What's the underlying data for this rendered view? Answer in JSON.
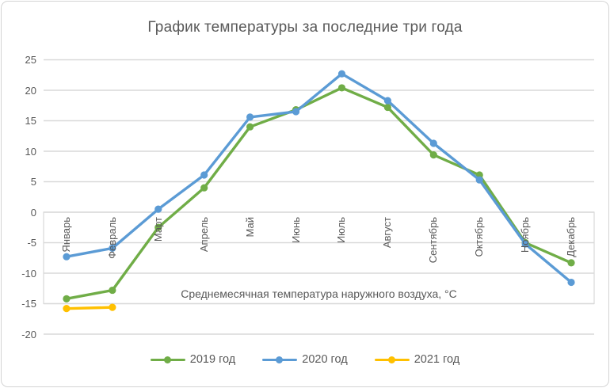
{
  "chart_data": {
    "type": "line",
    "title": "График температуры за последние три года",
    "axis_note": "Среднемесячная температура наружного воздуха, °С",
    "categories": [
      "Январь",
      "Февраль",
      "Март",
      "Апрель",
      "Май",
      "Июнь",
      "Июль",
      "Август",
      "Сентябрь",
      "Октябрь",
      "Ноябрь",
      "Декабрь"
    ],
    "y_ticks": [
      25,
      20,
      15,
      10,
      5,
      0,
      -5,
      -10,
      -15,
      -20
    ],
    "ylim": [
      -20,
      25
    ],
    "grid": true,
    "legend_position": "bottom",
    "series": [
      {
        "name": "2019 год",
        "color": "#70AD47",
        "values": [
          -14.2,
          -12.8,
          -2.5,
          4.0,
          14.0,
          16.8,
          20.4,
          17.2,
          9.4,
          6.1,
          -5.0,
          -8.3
        ]
      },
      {
        "name": "2020 год",
        "color": "#5B9BD5",
        "values": [
          -7.3,
          -5.9,
          0.5,
          6.1,
          15.6,
          16.5,
          22.7,
          18.3,
          11.3,
          5.3,
          -5.2,
          -11.5
        ]
      },
      {
        "name": "2021 год",
        "color": "#FFC000",
        "values": [
          -15.8,
          -15.6,
          null,
          null,
          null,
          null,
          null,
          null,
          null,
          null,
          null,
          null
        ]
      }
    ]
  },
  "colors": {
    "text": "#595959",
    "grid": "#D9D9D9",
    "axis_box": "#D9D9D9",
    "background": "#FFFFFF"
  }
}
